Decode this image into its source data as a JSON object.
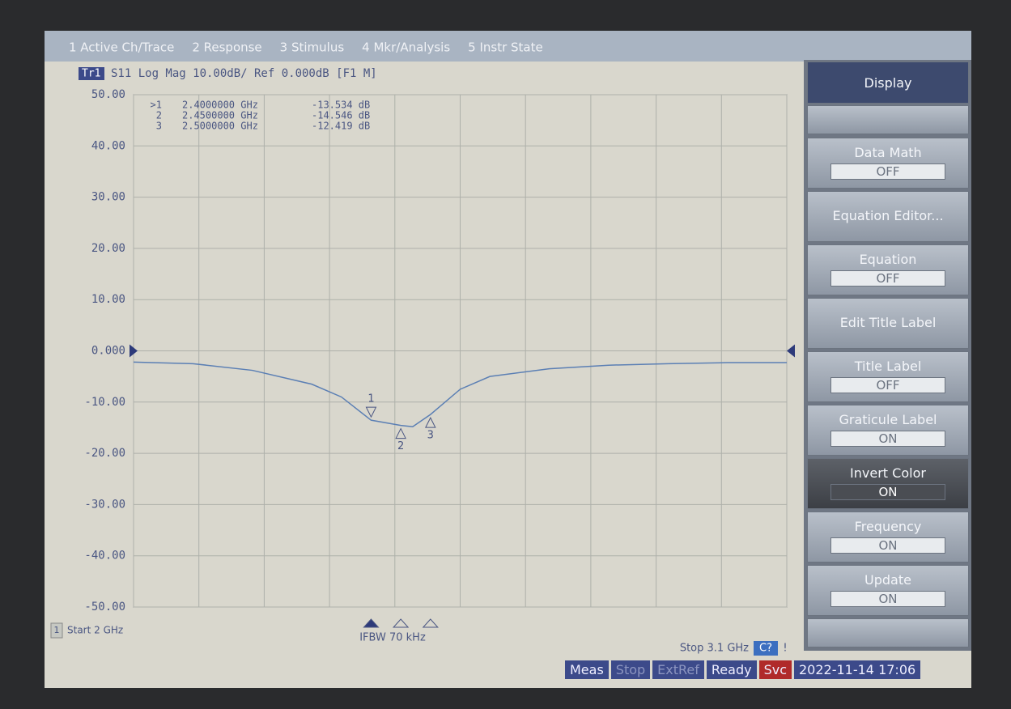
{
  "menu": [
    "1 Active Ch/Trace",
    "2 Response",
    "3 Stimulus",
    "4 Mkr/Analysis",
    "5 Instr State"
  ],
  "chart_data": {
    "type": "line",
    "trace_label": "Tr1",
    "title": "S11 Log Mag 10.00dB/ Ref 0.000dB [F1 M]",
    "x": [
      2.0,
      2.1,
      2.2,
      2.3,
      2.35,
      2.4,
      2.45,
      2.47,
      2.5,
      2.55,
      2.6,
      2.7,
      2.8,
      2.9,
      3.0,
      3.1
    ],
    "values": [
      -2.2,
      -2.5,
      -3.8,
      -6.5,
      -9,
      -13.534,
      -14.546,
      -14.8,
      -12.419,
      -7.5,
      -5,
      -3.5,
      -2.8,
      -2.5,
      -2.3,
      -2.3
    ],
    "color": "#5b7fb4",
    "ref_level": 0,
    "xlim": [
      2,
      3.1
    ],
    "xticks": [
      2,
      2.11,
      2.22,
      2.33,
      2.44,
      2.55,
      2.66,
      2.77,
      2.88,
      2.99,
      3.1
    ],
    "ylim": [
      -50,
      50
    ],
    "yticks": [
      {
        "value": 50,
        "label": "50.00"
      },
      {
        "value": 40,
        "label": "40.00"
      },
      {
        "value": 30,
        "label": "30.00"
      },
      {
        "value": 20,
        "label": "20.00"
      },
      {
        "value": 10,
        "label": "10.00"
      },
      {
        "value": 0,
        "label": "0.000"
      },
      {
        "value": -10,
        "label": "-10.00"
      },
      {
        "value": -20,
        "label": "-20.00"
      },
      {
        "value": -30,
        "label": "-30.00"
      },
      {
        "value": -40,
        "label": "-40.00"
      },
      {
        "value": -50,
        "label": "-50.00"
      }
    ],
    "grid": true,
    "markers": {
      "readout_ids": [
        ">1",
        "2",
        "3"
      ],
      "names": [
        "1",
        "2",
        "3"
      ],
      "x": [
        2.4,
        2.45,
        2.5
      ],
      "x_labels": [
        "2.4000000 GHz",
        "2.4500000 GHz",
        "2.5000000 GHz"
      ],
      "values": [
        -13.534,
        -14.546,
        -12.419
      ],
      "value_labels": [
        "-13.534 dB",
        "-14.546 dB",
        "-12.419 dB"
      ]
    }
  },
  "stimulus": {
    "channel": "1",
    "start": "Start 2 GHz",
    "ifbw": "IFBW 70 kHz",
    "stop": "Stop 3.1 GHz",
    "cal": "C?",
    "flag": "!"
  },
  "softkeys": {
    "title": "Display",
    "keys": [
      {
        "label": "Data Math",
        "state": "OFF"
      },
      {
        "label": "Equation Editor..."
      },
      {
        "label": "Equation",
        "state": "OFF"
      },
      {
        "label": "Edit Title Label"
      },
      {
        "label": "Title Label",
        "state": "OFF"
      },
      {
        "label": "Graticule Label",
        "state": "ON"
      },
      {
        "label": "Invert Color",
        "state": "ON",
        "highlighted": true
      },
      {
        "label": "Frequency",
        "state": "ON"
      },
      {
        "label": "Update",
        "state": "ON"
      }
    ]
  },
  "status": [
    "Meas",
    "Stop",
    "ExtRef",
    "Ready",
    "Svc",
    "2022-11-14 17:06"
  ]
}
